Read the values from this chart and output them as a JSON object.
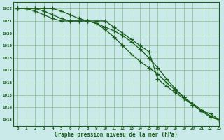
{
  "title": "Graphe pression niveau de la mer (hPa)",
  "bg_color": "#caeaea",
  "grid_color": "#88bb88",
  "line_color": "#1a5c1a",
  "xlim": [
    -0.5,
    23
  ],
  "ylim": [
    1012.5,
    1022.5
  ],
  "yticks": [
    1013,
    1014,
    1015,
    1016,
    1017,
    1018,
    1019,
    1020,
    1021,
    1022
  ],
  "xticks": [
    0,
    1,
    2,
    3,
    4,
    5,
    6,
    7,
    8,
    9,
    10,
    11,
    12,
    13,
    14,
    15,
    16,
    17,
    18,
    19,
    20,
    21,
    22,
    23
  ],
  "hours": [
    0,
    1,
    2,
    3,
    4,
    5,
    6,
    7,
    8,
    9,
    10,
    11,
    12,
    13,
    14,
    15,
    16,
    17,
    18,
    19,
    20,
    21,
    22,
    23
  ],
  "line1": [
    1022,
    1022,
    1022,
    1022,
    1022,
    1021.8,
    1021.5,
    1021.2,
    1021,
    1020.8,
    1020.5,
    1020.2,
    1019.8,
    1019.3,
    1018.7,
    1018,
    1017.2,
    1016.3,
    1015.5,
    1014.8,
    1014.2,
    1013.7,
    1013.2,
    1013
  ],
  "line2": [
    1022,
    1022,
    1021.8,
    1021.5,
    1021.2,
    1021,
    1021,
    1021,
    1021,
    1020.8,
    1020.3,
    1019.7,
    1019,
    1018.3,
    1017.7,
    1017.2,
    1016.7,
    1016,
    1015.4,
    1014.8,
    1014.3,
    1013.8,
    1013.3,
    1013
  ],
  "line3": [
    1022,
    1022,
    1022,
    1021.8,
    1021.5,
    1021.2,
    1021,
    1021,
    1021,
    1021,
    1021,
    1020.5,
    1020,
    1019.5,
    1019,
    1018.5,
    1016.3,
    1015.7,
    1015.2,
    1014.7,
    1014.2,
    1013.7,
    1013.5,
    1013
  ]
}
